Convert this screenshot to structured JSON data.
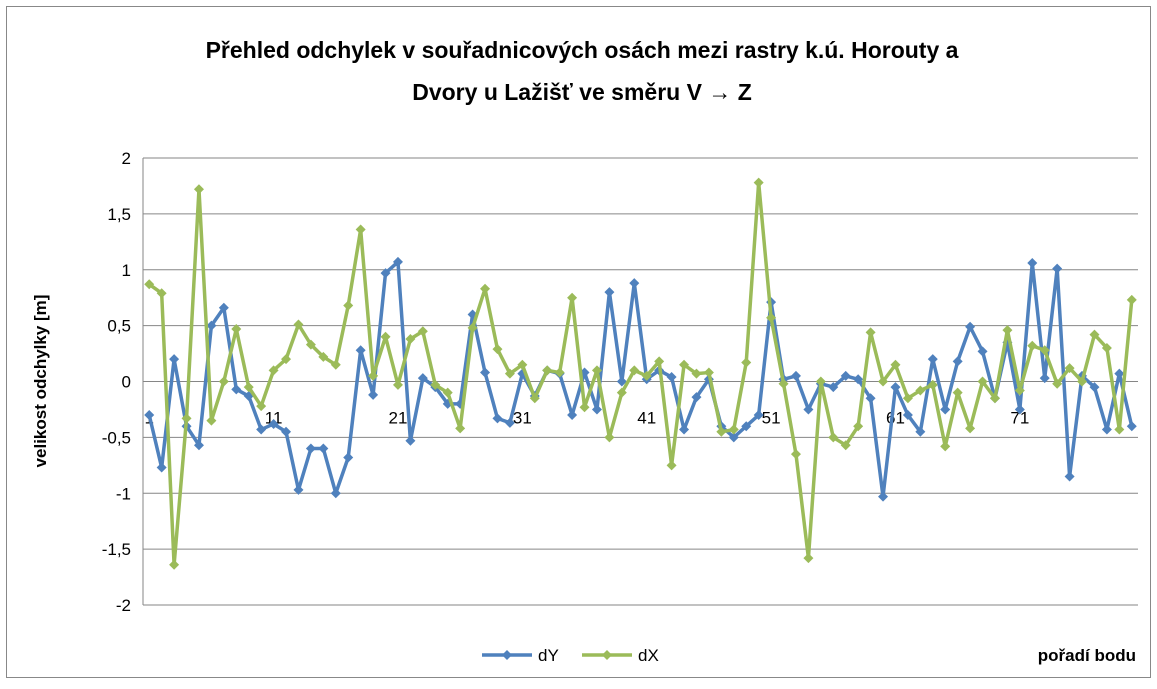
{
  "chart_data": {
    "type": "line",
    "title": [
      "Přehled odchylek v souřadnicových osách mezi rastry k.ú. Horouty a",
      "Dvory u Lažišť ve směru V → Z"
    ],
    "y_label": "velikost odchylky [m]",
    "x_label": "pořadí bodu",
    "categories": [
      "1",
      null,
      null,
      null,
      null,
      null,
      null,
      null,
      null,
      null,
      "11",
      null,
      null,
      null,
      null,
      null,
      null,
      null,
      null,
      null,
      "21",
      null,
      null,
      null,
      null,
      null,
      null,
      null,
      null,
      null,
      "31",
      null,
      null,
      null,
      null,
      null,
      null,
      null,
      null,
      null,
      "41",
      null,
      null,
      null,
      null,
      null,
      null,
      null,
      null,
      null,
      "51",
      null,
      null,
      null,
      null,
      null,
      null,
      null,
      null,
      null,
      "61",
      null,
      null,
      null,
      null,
      null,
      null,
      null,
      null,
      null,
      "71",
      null,
      null,
      null,
      null,
      null,
      null,
      null,
      null,
      null
    ],
    "series": [
      {
        "name": "dY",
        "color": "#4f81bd",
        "values": [
          -0.3,
          -0.77,
          0.2,
          -0.4,
          -0.57,
          0.5,
          0.66,
          -0.07,
          -0.13,
          -0.43,
          -0.38,
          -0.45,
          -0.97,
          -0.6,
          -0.6,
          -1.0,
          -0.68,
          0.28,
          -0.12,
          0.97,
          1.07,
          -0.53,
          0.03,
          -0.05,
          -0.2,
          -0.2,
          0.6,
          0.08,
          -0.33,
          -0.37,
          0.07,
          -0.13,
          0.1,
          0.07,
          -0.3,
          0.08,
          -0.25,
          0.8,
          0.0,
          0.88,
          0.02,
          0.1,
          0.04,
          -0.43,
          -0.14,
          0.02,
          -0.4,
          -0.5,
          -0.4,
          -0.3,
          0.71,
          0.02,
          0.05,
          -0.25,
          -0.02,
          -0.05,
          0.05,
          0.02,
          -0.15,
          -1.03,
          -0.05,
          -0.3,
          -0.45,
          0.2,
          -0.25,
          0.18,
          0.49,
          0.27,
          -0.15,
          0.35,
          -0.25,
          1.06,
          0.03,
          1.01,
          -0.85,
          0.05,
          -0.05,
          -0.43,
          0.07,
          -0.4
        ]
      },
      {
        "name": "dX",
        "color": "#9bbb59",
        "values": [
          0.87,
          0.79,
          -1.64,
          -0.33,
          1.72,
          -0.35,
          0.0,
          0.47,
          -0.05,
          -0.22,
          0.1,
          0.2,
          0.51,
          0.33,
          0.22,
          0.15,
          0.68,
          1.36,
          0.05,
          0.4,
          -0.03,
          0.38,
          0.45,
          -0.03,
          -0.1,
          -0.42,
          0.48,
          0.83,
          0.29,
          0.07,
          0.15,
          -0.15,
          0.1,
          0.08,
          0.75,
          -0.23,
          0.1,
          -0.5,
          -0.1,
          0.1,
          0.05,
          0.18,
          -0.75,
          0.15,
          0.07,
          0.08,
          -0.45,
          -0.43,
          0.17,
          1.78,
          0.57,
          -0.02,
          -0.65,
          -1.58,
          0.0,
          -0.5,
          -0.57,
          -0.4,
          0.44,
          0.0,
          0.15,
          -0.15,
          -0.08,
          -0.03,
          -0.58,
          -0.1,
          -0.42,
          0.0,
          -0.15,
          0.46,
          -0.08,
          0.32,
          0.28,
          -0.02,
          0.12,
          0.0,
          0.42,
          0.3,
          -0.43,
          0.73
        ]
      }
    ],
    "ylim": [
      -2,
      2
    ],
    "yticks": [
      -2,
      {
        "value": -1.5,
        "label": "-1,5"
      },
      -1,
      {
        "value": -0.5,
        "label": "-0,5"
      },
      0,
      {
        "value": 0.5,
        "label": "0,5"
      },
      1,
      {
        "value": 1.5,
        "label": "1,5"
      },
      2
    ],
    "grid": true,
    "legend": "bottom"
  }
}
